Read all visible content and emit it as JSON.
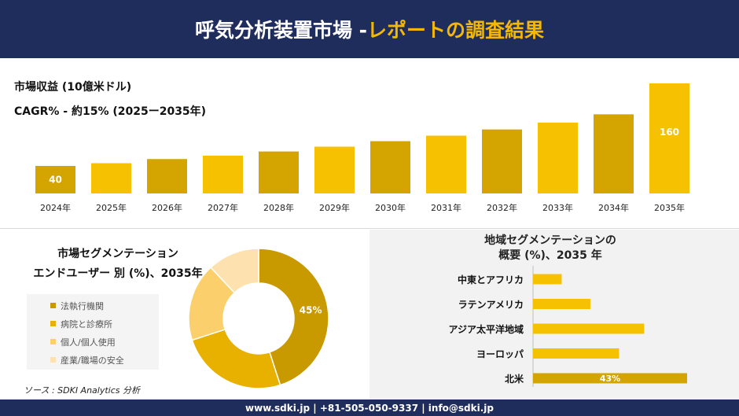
{
  "header": {
    "title_main": "呼気分析装置市場 -",
    "title_accent": "レポートの調査結果"
  },
  "revenue": {
    "label": "市場収益 (10億米ドル)",
    "cagr": "CAGR% - 約15% (2025ー2035年)"
  },
  "segment": {
    "title_line1": "市場セグメンテーション",
    "title_line2": "エンドユーザー 別 (%)、2035年"
  },
  "region": {
    "title_line1": "地域セグメンテーションの",
    "title_line2": "概要 (%)、2035 年"
  },
  "source": "ソース : SDKI Analytics 分析",
  "footer": "www.sdki.jp | +81-505-050-9337 | info@sdki.jp",
  "colors": {
    "navy": "#1f2d5c",
    "accent": "#f3b705",
    "bar_dark": "#d4a500",
    "bar_light": "#f6c100"
  },
  "chart_data": [
    {
      "type": "bar",
      "categories": [
        "2024年",
        "2025年",
        "2026年",
        "2027年",
        "2028年",
        "2029年",
        "2030年",
        "2031年",
        "2032年",
        "2033年",
        "2034年",
        "2035年"
      ],
      "values": [
        40,
        44,
        50,
        55,
        61,
        68,
        76,
        84,
        93,
        103,
        115,
        160
      ],
      "data_labels": {
        "0": "40",
        "11": "160"
      }
    },
    {
      "type": "pie",
      "categories": [
        "法執行機関",
        "病院と診療所",
        "個人/個人使用",
        "産業/職場の安全"
      ],
      "values": [
        45,
        25,
        18,
        12
      ],
      "colors": [
        "#c99a00",
        "#e8b100",
        "#fbcf6b",
        "#fde2b0"
      ],
      "data_labels": {
        "0": "45%"
      }
    },
    {
      "type": "bar",
      "orientation": "horizontal",
      "categories": [
        "中東とアフリカ",
        "ラテンアメリカ",
        "アジア太平洋地域",
        "ヨーロッパ",
        "北米"
      ],
      "values": [
        8,
        16,
        31,
        24,
        43
      ],
      "data_labels": {
        "4": "43%"
      }
    }
  ]
}
